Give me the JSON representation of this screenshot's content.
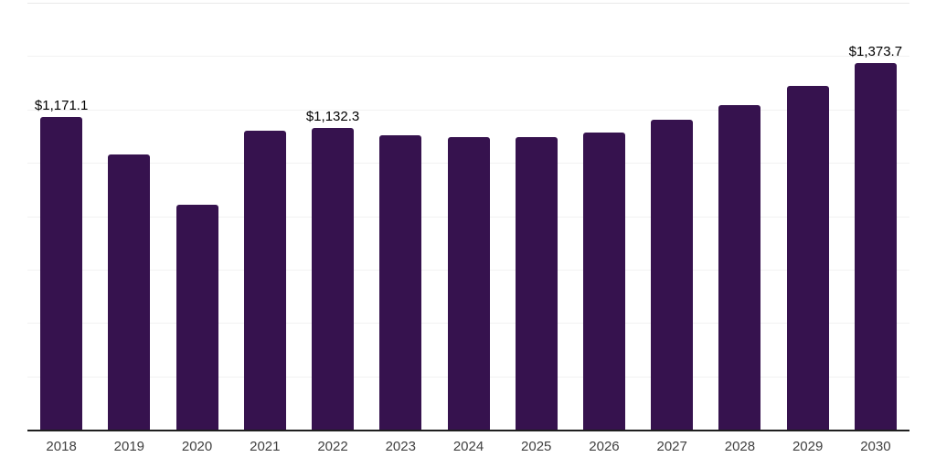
{
  "chart_data": {
    "type": "bar",
    "title": "",
    "xlabel": "",
    "ylabel": "",
    "categories": [
      "2018",
      "2019",
      "2020",
      "2021",
      "2022",
      "2023",
      "2024",
      "2025",
      "2026",
      "2027",
      "2028",
      "2029",
      "2030"
    ],
    "values": [
      1171.1,
      1030,
      842,
      1120,
      1132.3,
      1104,
      1098,
      1098,
      1113,
      1160,
      1217,
      1288,
      1373.7
    ],
    "value_labels": [
      "$1,171.1",
      "",
      "",
      "",
      "$1,132.3",
      "",
      "",
      "",
      "",
      "",
      "",
      "",
      "$1,373.7"
    ],
    "ylim": [
      0,
      1600
    ],
    "gridline_step": 200,
    "grid": true,
    "legend": false,
    "y_tick_labels_visible": false,
    "colors": {
      "bar": "#36124E",
      "gridline": "#f2f2f2",
      "top_gridline": "#e9e9e9",
      "axis_line": "#1f1f1f",
      "value_label_text": "#000000",
      "tick_label_text": "#404040",
      "background": "#ffffff"
    }
  }
}
